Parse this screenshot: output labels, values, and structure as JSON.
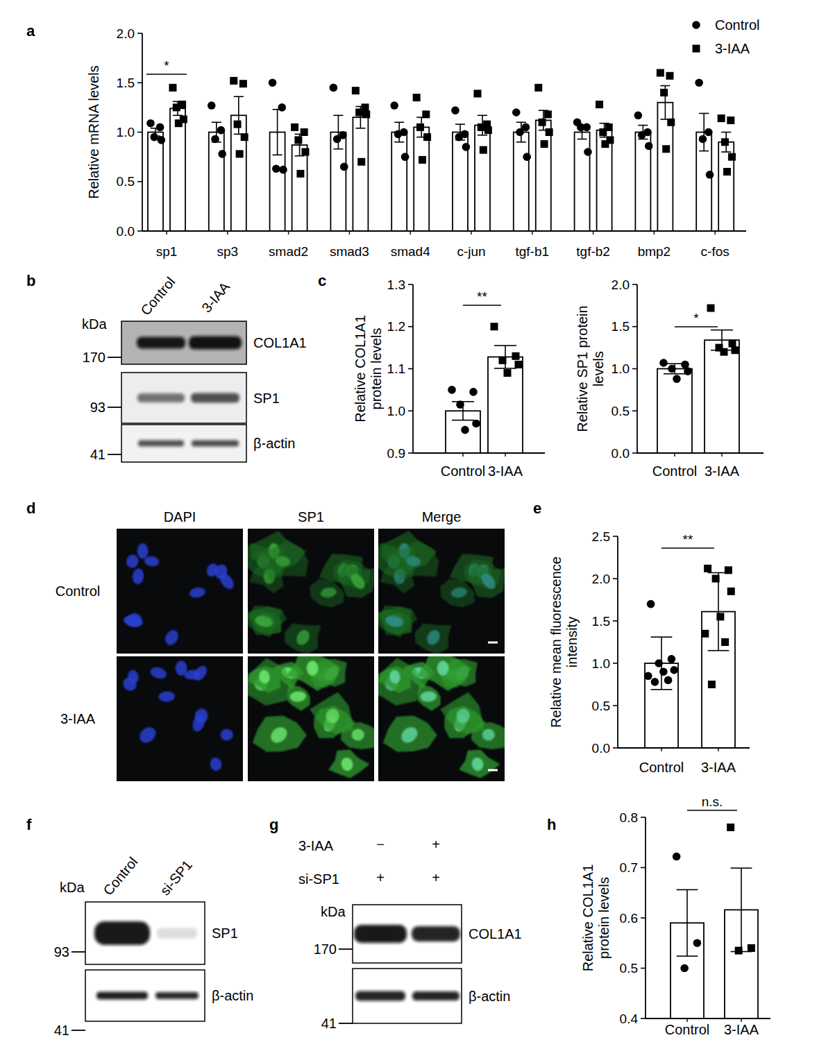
{
  "panel_labels": [
    "a",
    "b",
    "c",
    "d",
    "e",
    "f",
    "g",
    "h"
  ],
  "chart_data": [
    {
      "type": "bar",
      "y_label": "Relative mRNA levels",
      "categories": [
        "sp1",
        "sp3",
        "smad2",
        "smad3",
        "smad4",
        "c-jun",
        "tgf-b1",
        "tgf-b2",
        "bmp2",
        "c-fos"
      ],
      "ylim": [
        0,
        2
      ],
      "yticks": [
        {
          "value": 0,
          "label": "0.0"
        },
        0.5,
        {
          "value": 1,
          "label": "1.0"
        },
        1.5,
        {
          "value": 2,
          "label": "2.0"
        }
      ],
      "legend": "upper right",
      "series": [
        {
          "name": "Control",
          "color": "#000000",
          "marker": "circle",
          "values": [
            1.0,
            1.0,
            1.0,
            1.0,
            1.0,
            1.0,
            1.0,
            1.0,
            1.0,
            1.0
          ],
          "errors": [
            0.04,
            0.1,
            0.23,
            0.17,
            0.1,
            0.08,
            0.1,
            0.07,
            0.07,
            0.19
          ],
          "points": [
            [
              1.09,
              1.05,
              0.95,
              0.92
            ],
            [
              1.27,
              1.02,
              0.93,
              0.78
            ],
            [
              1.5,
              1.25,
              0.63,
              0.62
            ],
            [
              1.45,
              0.97,
              0.93,
              0.65
            ],
            [
              1.27,
              1.0,
              0.98,
              0.75
            ],
            [
              1.22,
              0.98,
              0.95,
              0.85
            ],
            [
              1.2,
              1.05,
              1.0,
              0.75
            ],
            [
              1.1,
              1.05,
              1.05,
              0.8
            ],
            [
              1.17,
              1.0,
              0.97,
              0.86
            ],
            [
              1.5,
              1.0,
              0.93,
              0.57
            ]
          ]
        },
        {
          "name": "3-IAA",
          "color": "#000000",
          "marker": "square",
          "values": [
            1.24,
            1.17,
            0.87,
            1.15,
            1.05,
            1.07,
            1.12,
            1.02,
            1.3,
            0.9
          ],
          "errors": [
            0.07,
            0.19,
            0.11,
            0.11,
            0.1,
            0.1,
            0.1,
            0.07,
            0.17,
            0.1
          ],
          "points": [
            [
              1.45,
              1.28,
              1.25,
              1.13,
              1.09
            ],
            [
              1.52,
              1.49,
              1.08,
              0.95,
              0.78
            ],
            [
              1.05,
              1.0,
              0.92,
              0.8,
              0.58
            ],
            [
              1.42,
              1.25,
              1.2,
              1.18,
              0.7
            ],
            [
              1.35,
              1.18,
              1.05,
              0.95,
              0.72
            ],
            [
              1.39,
              1.08,
              1.05,
              1.02,
              0.82
            ],
            [
              1.45,
              1.18,
              1.1,
              1.0,
              0.88
            ],
            [
              1.28,
              1.05,
              1.0,
              0.92,
              0.88
            ],
            [
              1.6,
              1.57,
              1.4,
              1.1,
              0.83
            ],
            [
              1.14,
              1.12,
              0.9,
              0.75,
              0.6
            ]
          ]
        }
      ],
      "annotations": [
        {
          "text": "*",
          "category": "sp1"
        }
      ]
    },
    {
      "type": "bar",
      "y_label": "Relative COL1A1 protein levels",
      "categories": [
        "Control",
        "3-IAA"
      ],
      "ylim": [
        0.9,
        1.3
      ],
      "yticks": [
        0.9,
        {
          "value": 1,
          "label": "1.0"
        },
        1.1,
        1.2,
        1.3
      ],
      "series": [
        {
          "color": "#000000",
          "marker": "circle",
          "values": [
            1.0,
            null
          ],
          "errors": [
            0.022,
            null
          ],
          "points": [
            [
              1.05,
              1.045,
              1.015,
              0.97,
              0.955
            ],
            null
          ]
        },
        {
          "color": "#000000",
          "marker": "square",
          "values": [
            null,
            1.128
          ],
          "errors": [
            null,
            0.027
          ],
          "points": [
            null,
            [
              1.2,
              1.13,
              1.12,
              1.11,
              1.09
            ]
          ]
        }
      ],
      "annotations": [
        {
          "text": "**"
        }
      ]
    },
    {
      "type": "bar",
      "y_label": "Relative SP1 protein levels",
      "categories": [
        "Control",
        "3-IAA"
      ],
      "ylim": [
        0,
        2
      ],
      "yticks": [
        {
          "value": 0,
          "label": "0.0"
        },
        0.5,
        {
          "value": 1,
          "label": "1.0"
        },
        1.5,
        {
          "value": 2,
          "label": "2.0"
        }
      ],
      "series": [
        {
          "color": "#000000",
          "marker": "circle",
          "values": [
            1.0,
            null
          ],
          "errors": [
            0.06,
            null
          ],
          "points": [
            [
              1.07,
              1.05,
              1.0,
              0.97,
              0.88
            ],
            null
          ]
        },
        {
          "color": "#000000",
          "marker": "square",
          "values": [
            null,
            1.34
          ],
          "errors": [
            null,
            0.12
          ],
          "points": [
            null,
            [
              1.72,
              1.3,
              1.25,
              1.22,
              1.2
            ]
          ]
        }
      ],
      "annotations": [
        {
          "text": "*"
        }
      ]
    },
    {
      "type": "bar",
      "y_label": "Relative mean fluorescence intensity",
      "categories": [
        "Control",
        "3-IAA"
      ],
      "ylim": [
        0,
        2.5
      ],
      "yticks": [
        {
          "value": 0,
          "label": "0.0"
        },
        0.5,
        {
          "value": 1,
          "label": "1.0"
        },
        1.5,
        {
          "value": 2,
          "label": "2.0"
        },
        2.5
      ],
      "series": [
        {
          "color": "#000000",
          "marker": "circle",
          "values": [
            1.0,
            null
          ],
          "errors": [
            0.31,
            null
          ],
          "points": [
            [
              1.7,
              1.05,
              1.0,
              0.92,
              0.9,
              0.85,
              0.8,
              0.78
            ],
            null
          ]
        },
        {
          "color": "#000000",
          "marker": "square",
          "values": [
            null,
            1.61
          ],
          "errors": [
            null,
            0.46
          ],
          "points": [
            null,
            [
              2.12,
              2.1,
              2.0,
              1.85,
              1.55,
              1.35,
              1.25,
              0.75
            ]
          ]
        }
      ],
      "annotations": [
        {
          "text": "**"
        }
      ]
    },
    {
      "type": "bar",
      "y_label": "Relative COL1A1 protein levels",
      "categories": [
        "Control",
        "3-IAA"
      ],
      "ylim": [
        0.4,
        0.8
      ],
      "yticks": [
        0.4,
        0.5,
        0.6,
        0.7,
        0.8
      ],
      "series": [
        {
          "color": "#000000",
          "marker": "circle",
          "values": [
            0.59,
            null
          ],
          "errors": [
            0.066,
            null
          ],
          "points": [
            [
              0.722,
              0.55,
              0.5
            ],
            null
          ]
        },
        {
          "color": "#000000",
          "marker": "square",
          "values": [
            null,
            0.616
          ],
          "errors": [
            null,
            0.083
          ],
          "points": [
            null,
            [
              0.78,
              0.54,
              0.535
            ]
          ]
        }
      ],
      "annotations": [
        {
          "text": "n.s."
        }
      ]
    }
  ],
  "blots": [
    {
      "unit": "kDa",
      "lanes": [
        "Control",
        "3-IAA"
      ],
      "rows": [
        {
          "protein": "COL1A1",
          "marker": 170
        },
        {
          "protein": "SP1",
          "marker": 93
        },
        {
          "protein": "β-actin",
          "marker": 41
        }
      ]
    },
    {
      "unit": "kDa",
      "lanes": [
        "Control",
        "si-SP1"
      ],
      "rows": [
        {
          "protein": "SP1",
          "marker": 93
        },
        {
          "protein": "β-actin",
          "marker": 41
        }
      ]
    },
    {
      "unit": "kDa",
      "conditions": [
        {
          "label": "3-IAA",
          "values": [
            "−",
            "+"
          ]
        },
        {
          "label": "si-SP1",
          "values": [
            "+",
            "+"
          ]
        }
      ],
      "rows": [
        {
          "protein": "COL1A1",
          "marker": 170
        },
        {
          "protein": "β-actin",
          "marker": 41
        }
      ]
    }
  ],
  "microscopy": {
    "channels": [
      "DAPI",
      "SP1",
      "Merge"
    ],
    "rows": [
      "Control",
      "3-IAA"
    ]
  }
}
